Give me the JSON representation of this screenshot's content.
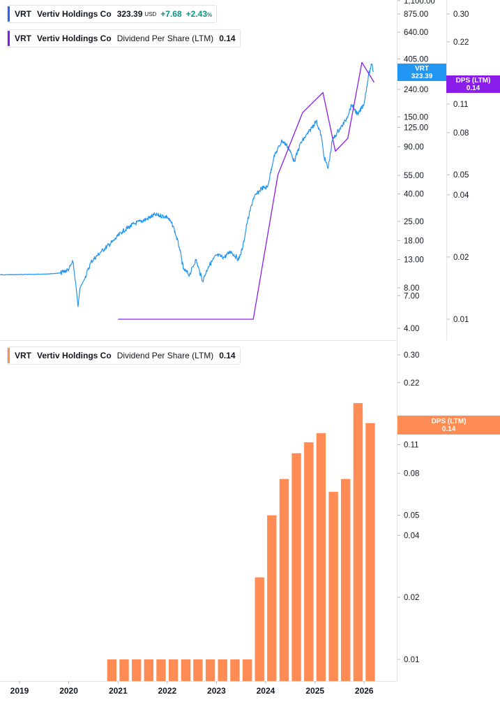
{
  "legends": {
    "top": {
      "symbol": "VRT",
      "name": "Vertiv Holdings Co",
      "price": "323.39",
      "currency": "USD",
      "change": "+7.68",
      "change_pct": "+2.43",
      "pct_sign": "%",
      "color": "#2962ff"
    },
    "dps_top": {
      "symbol": "VRT",
      "name": "Vertiv Holdings Co",
      "metric": "Dividend Per Share (LTM)",
      "value": "0.14",
      "color": "#7b1fe0"
    },
    "dps_bottom": {
      "symbol": "VRT",
      "name": "Vertiv Holdings Co",
      "metric": "Dividend Per Share (LTM)",
      "value": "0.14",
      "color": "#ff8c55"
    }
  },
  "tags": {
    "price_tag": {
      "label": "VRT",
      "value": "323.39",
      "color": "#2196f3"
    },
    "dps_tag_top": {
      "label": "DPS (LTM)",
      "value": "0.14",
      "color": "#8a1dea"
    },
    "dps_tag_bottom": {
      "label": "DPS (LTM)",
      "value": "0.14",
      "color": "#ff8c55"
    }
  },
  "chart_data": [
    {
      "type": "line",
      "series": [
        {
          "name": "VRT",
          "color": "#2196f3",
          "points": [
            [
              "2018-01-01",
              10.0
            ],
            [
              "2018-06-01",
              10.0
            ],
            [
              "2019-01-01",
              10.05
            ],
            [
              "2019-06-01",
              10.1
            ],
            [
              "2019-11-01",
              10.3
            ],
            [
              "2020-01-01",
              11.0
            ],
            [
              "2020-02-01",
              12.5
            ],
            [
              "2020-02-20",
              9.0
            ],
            [
              "2020-03-10",
              5.8
            ],
            [
              "2020-03-25",
              8.0
            ],
            [
              "2020-05-01",
              9.5
            ],
            [
              "2020-06-15",
              12.5
            ],
            [
              "2020-09-01",
              15.0
            ],
            [
              "2020-12-01",
              18.0
            ],
            [
              "2021-02-01",
              21.0
            ],
            [
              "2021-05-01",
              24.0
            ],
            [
              "2021-08-01",
              26.0
            ],
            [
              "2021-10-01",
              28.0
            ],
            [
              "2022-01-01",
              27.0
            ],
            [
              "2022-02-15",
              23.0
            ],
            [
              "2022-04-01",
              16.0
            ],
            [
              "2022-05-01",
              11.0
            ],
            [
              "2022-06-15",
              10.0
            ],
            [
              "2022-08-01",
              13.0
            ],
            [
              "2022-09-20",
              9.0
            ],
            [
              "2022-11-01",
              11.5
            ],
            [
              "2023-01-01",
              14.0
            ],
            [
              "2023-03-01",
              13.5
            ],
            [
              "2023-04-15",
              15.0
            ],
            [
              "2023-06-15",
              13.0
            ],
            [
              "2023-07-15",
              16.0
            ],
            [
              "2023-08-15",
              24.0
            ],
            [
              "2023-10-01",
              37.0
            ],
            [
              "2023-12-01",
              44.0
            ],
            [
              "2024-01-15",
              45.0
            ],
            [
              "2024-03-01",
              75.0
            ],
            [
              "2024-05-01",
              100.0
            ],
            [
              "2024-06-15",
              90.0
            ],
            [
              "2024-08-01",
              70.0
            ],
            [
              "2024-09-15",
              95.0
            ],
            [
              "2024-11-15",
              115.0
            ],
            [
              "2025-01-10",
              140.0
            ],
            [
              "2025-02-15",
              110.0
            ],
            [
              "2025-03-10",
              75.0
            ],
            [
              "2025-04-08",
              62.0
            ],
            [
              "2025-05-10",
              100.0
            ],
            [
              "2025-06-15",
              115.0
            ],
            [
              "2025-08-15",
              140.0
            ],
            [
              "2025-10-01",
              185.0
            ],
            [
              "2025-11-15",
              155.0
            ],
            [
              "2026-01-01",
              190.0
            ],
            [
              "2026-02-01",
              300.0
            ],
            [
              "2026-02-25",
              370.0
            ],
            [
              "2026-03-10",
              323.39
            ]
          ]
        },
        {
          "name": "Dividend Per Share (LTM)",
          "color": "#8a1dea",
          "points": [
            [
              "2021-01-01",
              0.01
            ],
            [
              "2023-10-01",
              0.01
            ],
            [
              "2024-04-01",
              0.05
            ],
            [
              "2024-10-01",
              0.1
            ],
            [
              "2025-03-01",
              0.125
            ],
            [
              "2025-06-01",
              0.065
            ],
            [
              "2025-09-01",
              0.075
            ],
            [
              "2025-12-15",
              0.175
            ],
            [
              "2026-03-15",
              0.14
            ]
          ]
        }
      ],
      "y_ticks_left_axis": [
        "1,100.00",
        "875.00",
        "640.00",
        "405.00",
        "240.00",
        "150.00",
        "125.00",
        "90.00",
        "55.00",
        "40.00",
        "25.00",
        "18.00",
        "13.00",
        "8.00",
        "7.00",
        "4.00"
      ],
      "y_ticks_right_axis": [
        "0.30",
        "0.22",
        "0.11",
        "0.08",
        "0.05",
        "0.04",
        "0.02",
        "0.01"
      ],
      "yscale": "log"
    },
    {
      "type": "bar",
      "series": [
        {
          "name": "Dividend Per Share (LTM)",
          "color": "#ff8c55",
          "points": [
            [
              "2020-Q4",
              0.01
            ],
            [
              "2021-Q1",
              0.01
            ],
            [
              "2021-Q2",
              0.01
            ],
            [
              "2021-Q3",
              0.01
            ],
            [
              "2021-Q4",
              0.01
            ],
            [
              "2022-Q1",
              0.01
            ],
            [
              "2022-Q2",
              0.01
            ],
            [
              "2022-Q3",
              0.01
            ],
            [
              "2022-Q4",
              0.01
            ],
            [
              "2023-Q1",
              0.01
            ],
            [
              "2023-Q2",
              0.01
            ],
            [
              "2023-Q3",
              0.01
            ],
            [
              "2023-Q4",
              0.025
            ],
            [
              "2024-Q1",
              0.05
            ],
            [
              "2024-Q2",
              0.075
            ],
            [
              "2024-Q3",
              0.1
            ],
            [
              "2024-Q4",
              0.113
            ],
            [
              "2025-Q1",
              0.125
            ],
            [
              "2025-Q2",
              0.065
            ],
            [
              "2025-Q3",
              0.075
            ],
            [
              "2025-Q4",
              0.175
            ],
            [
              "2026-Q1",
              0.14
            ]
          ]
        }
      ],
      "y_ticks": [
        "0.30",
        "0.22",
        "0.11",
        "0.08",
        "0.05",
        "0.04",
        "0.02",
        "0.01"
      ],
      "x_ticks": [
        "2019",
        "2020",
        "2021",
        "2022",
        "2023",
        "2024",
        "2025",
        "2026"
      ],
      "yscale": "log"
    }
  ]
}
